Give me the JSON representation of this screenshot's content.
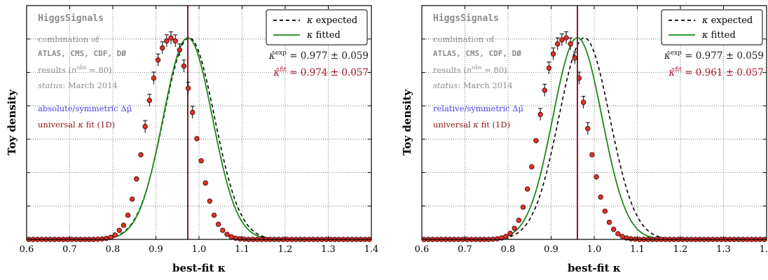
{
  "chart_data": [
    {
      "type": "line",
      "xlabel": "best-fit κ",
      "ylabel": "Toy density",
      "xlim": [
        0.6,
        1.4
      ],
      "xticks": [
        "0.6",
        "0.7",
        "0.8",
        "0.9",
        "1.0",
        "1.1",
        "1.2",
        "1.3",
        "1.4"
      ],
      "grid": "dotted",
      "legend_placement": "top-right",
      "fit_mean": 0.974,
      "fit_sigma": 0.057,
      "exp_mean": 0.977,
      "exp_sigma": 0.059,
      "marker_line_x": 0.974,
      "info": {
        "title": "HiggsSignals",
        "line1": "combination of",
        "line2": "ATLAS, CMS, CDF, DØ",
        "line3_a": "results (",
        "line3_b": "n",
        "line3_c": "obs",
        "line3_d": " = 80)",
        "line4_a": "status",
        "line4_b": ": March 2014",
        "line5": "absolute/symmetric Δμ̂",
        "line6_a": "universal ",
        "line6_b": "κ",
        "line6_c": " fit (1D)"
      },
      "legend": [
        {
          "kappa": "κ",
          "label": " expected",
          "color": "#000000",
          "style": "dashed"
        },
        {
          "kappa": "κ",
          "label": " fitted",
          "color": "#1a8a1a",
          "style": "solid"
        }
      ],
      "results": {
        "exp_kappa": "κ̂",
        "exp_sup": "exp",
        "exp_value": " = 0.977 ± 0.059",
        "fit_kappa": "κ̂",
        "fit_sup": "fit",
        "fit_value": " = 0.974 ± 0.057"
      },
      "points": {
        "x": [
          0.605,
          0.615,
          0.625,
          0.635,
          0.645,
          0.655,
          0.665,
          0.675,
          0.685,
          0.695,
          0.705,
          0.715,
          0.725,
          0.735,
          0.745,
          0.755,
          0.765,
          0.775,
          0.785,
          0.795,
          0.805,
          0.815,
          0.825,
          0.835,
          0.845,
          0.855,
          0.865,
          0.875,
          0.885,
          0.895,
          0.905,
          0.915,
          0.925,
          0.935,
          0.945,
          0.955,
          0.965,
          0.975,
          0.985,
          0.995,
          1.005,
          1.015,
          1.025,
          1.035,
          1.045,
          1.055,
          1.065,
          1.075,
          1.085,
          1.095,
          1.105,
          1.115,
          1.125,
          1.135,
          1.145,
          1.155,
          1.165,
          1.175,
          1.185,
          1.195,
          1.205,
          1.215,
          1.225,
          1.235,
          1.245,
          1.255,
          1.265,
          1.275,
          1.285,
          1.295,
          1.305,
          1.315,
          1.325,
          1.335,
          1.345,
          1.355,
          1.365,
          1.375,
          1.385,
          1.395
        ],
        "y": [
          0,
          0,
          0,
          0,
          0,
          0,
          0,
          0,
          0,
          0,
          0,
          0,
          0,
          0,
          0,
          0,
          0.001,
          0.002,
          0.005,
          0.01,
          0.022,
          0.045,
          0.07,
          0.12,
          0.2,
          0.3,
          0.42,
          0.56,
          0.69,
          0.8,
          0.89,
          0.95,
          0.985,
          1.0,
          0.985,
          0.94,
          0.86,
          0.75,
          0.63,
          0.5,
          0.39,
          0.28,
          0.19,
          0.12,
          0.075,
          0.045,
          0.025,
          0.013,
          0.006,
          0.003,
          0.001,
          0,
          0,
          0,
          0,
          0,
          0,
          0,
          0,
          0,
          0,
          0,
          0,
          0,
          0,
          0,
          0,
          0,
          0,
          0,
          0,
          0,
          0,
          0,
          0,
          0,
          0,
          0,
          0,
          0
        ]
      }
    },
    {
      "type": "line",
      "xlabel": "best-fit κ",
      "ylabel": "Toy density",
      "xlim": [
        0.6,
        1.4
      ],
      "xticks": [
        "0.6",
        "0.7",
        "0.8",
        "0.9",
        "1.0",
        "1.1",
        "1.2",
        "1.3",
        "1.4"
      ],
      "grid": "dotted",
      "legend_placement": "top-right",
      "fit_mean": 0.961,
      "fit_sigma": 0.057,
      "exp_mean": 0.977,
      "exp_sigma": 0.059,
      "marker_line_x": 0.961,
      "info": {
        "title": "HiggsSignals",
        "line1": "combination of",
        "line2": "ATLAS, CMS, CDF, DØ",
        "line3_a": "results (",
        "line3_b": "n",
        "line3_c": "obs",
        "line3_d": " = 80)",
        "line4_a": "status",
        "line4_b": ": March 2014",
        "line5": "relative/symmetric Δμ̂",
        "line6_a": "universal ",
        "line6_b": "κ",
        "line6_c": " fit (1D)"
      },
      "legend": [
        {
          "kappa": "κ",
          "label": " expected",
          "color": "#000000",
          "style": "dashed"
        },
        {
          "kappa": "κ",
          "label": " fitted",
          "color": "#1a8a1a",
          "style": "solid"
        }
      ],
      "results": {
        "exp_kappa": "κ̂",
        "exp_sup": "exp",
        "exp_value": " = 0.977 ± 0.059",
        "fit_kappa": "κ̂",
        "fit_sup": "fit",
        "fit_value": " = 0.961 ± 0.057"
      },
      "points": {
        "x": [
          0.605,
          0.615,
          0.625,
          0.635,
          0.645,
          0.655,
          0.665,
          0.675,
          0.685,
          0.695,
          0.705,
          0.715,
          0.725,
          0.735,
          0.745,
          0.755,
          0.765,
          0.775,
          0.785,
          0.795,
          0.805,
          0.815,
          0.825,
          0.835,
          0.845,
          0.855,
          0.865,
          0.875,
          0.885,
          0.895,
          0.905,
          0.915,
          0.925,
          0.935,
          0.945,
          0.955,
          0.965,
          0.975,
          0.985,
          0.995,
          1.005,
          1.015,
          1.025,
          1.035,
          1.045,
          1.055,
          1.065,
          1.075,
          1.085,
          1.095,
          1.105,
          1.115,
          1.125,
          1.135,
          1.145,
          1.155,
          1.165,
          1.175,
          1.185,
          1.195,
          1.205,
          1.215,
          1.225,
          1.235,
          1.245,
          1.255,
          1.265,
          1.275,
          1.285,
          1.295,
          1.305,
          1.315,
          1.325,
          1.335,
          1.345,
          1.355,
          1.365,
          1.375,
          1.385,
          1.395
        ],
        "y": [
          0,
          0,
          0,
          0,
          0,
          0,
          0,
          0,
          0,
          0,
          0,
          0,
          0,
          0,
          0,
          0,
          0.001,
          0.003,
          0.007,
          0.015,
          0.03,
          0.055,
          0.095,
          0.16,
          0.25,
          0.36,
          0.49,
          0.62,
          0.74,
          0.85,
          0.92,
          0.97,
          0.99,
          1.0,
          0.97,
          0.9,
          0.8,
          0.68,
          0.55,
          0.42,
          0.31,
          0.21,
          0.14,
          0.085,
          0.05,
          0.028,
          0.015,
          0.007,
          0.003,
          0.001,
          0,
          0,
          0,
          0,
          0,
          0,
          0,
          0,
          0,
          0,
          0,
          0,
          0,
          0,
          0,
          0,
          0,
          0,
          0,
          0,
          0,
          0,
          0,
          0,
          0,
          0,
          0,
          0,
          0,
          0
        ]
      }
    }
  ]
}
